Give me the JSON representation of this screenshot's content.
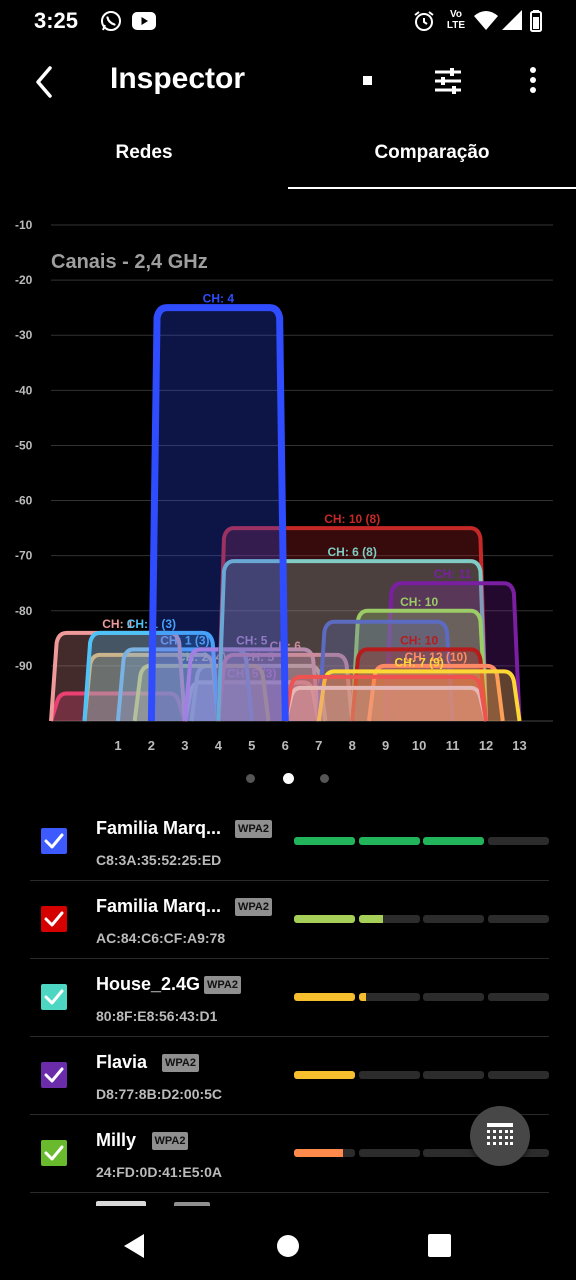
{
  "status_bar": {
    "time": "3:25",
    "icons": [
      "whatsapp-icon",
      "youtube-icon",
      "alarm-icon",
      "volte-icon",
      "wifi-icon",
      "signal-icon",
      "battery-icon"
    ],
    "volte_label": "Vo\nLTE"
  },
  "app_bar": {
    "title": "Inspector",
    "icons": [
      "back-arrow-icon",
      "stop-icon",
      "filter-sliders-icon",
      "more-vert-icon"
    ]
  },
  "tabs": [
    {
      "label": "Redes",
      "active": false
    },
    {
      "label": "Comparação",
      "active": true
    }
  ],
  "chart_data": {
    "type": "area",
    "title": "Canais - 2,4 GHz",
    "xlabel": "",
    "ylabel": "",
    "x_ticks": [
      1,
      2,
      3,
      4,
      5,
      6,
      7,
      8,
      9,
      10,
      11,
      12,
      13
    ],
    "y_ticks": [
      -10,
      -20,
      -30,
      -40,
      -50,
      -60,
      -70,
      -80,
      -90
    ],
    "ylim": [
      -100,
      -10
    ],
    "xlim": [
      -1,
      14
    ],
    "grid": true,
    "series": [
      {
        "label": "",
        "channel": 1,
        "width": 2,
        "signal": -95,
        "color": "#e91e63"
      },
      {
        "label": "CH: 5 (3)",
        "channel": 5,
        "width": 2,
        "signal": -93,
        "color": "#e040fb"
      },
      {
        "label": "",
        "channel": 5,
        "width": 2,
        "signal": -93,
        "color": "#f8bbd0"
      },
      {
        "label": "CH: 5",
        "channel": 5.2,
        "width": 2,
        "signal": -90,
        "color": "#bdbdbd"
      },
      {
        "label": "",
        "channel": 2,
        "width": 2,
        "signal": -88,
        "color": "#ffb74d"
      },
      {
        "label": "CH: 2 (4)",
        "channel": 3.5,
        "width": 2,
        "signal": -90,
        "color": "#fdd835"
      },
      {
        "label": "CH: 1 (3)",
        "channel": 3,
        "width": 2,
        "signal": -87,
        "color": "#64b5f6"
      },
      {
        "label": "CH: 1",
        "channel": 1,
        "width": 2,
        "signal": -84,
        "color": "#ef9a9a"
      },
      {
        "label": "CH: 1 (3)",
        "channel": 2,
        "width": 2,
        "signal": -84,
        "color": "#4fc3f7"
      },
      {
        "label": "CH: 5",
        "channel": 5,
        "width": 2,
        "signal": -87,
        "color": "#ce93d8"
      },
      {
        "label": "CH: 6",
        "channel": 6,
        "width": 2,
        "signal": -88,
        "color": "#f48fb1"
      },
      {
        "label": "CH: 10 (8)",
        "channel": 8,
        "width": 4,
        "signal": -65,
        "color": "#c62828"
      },
      {
        "label": "CH: 6 (8)",
        "channel": 8,
        "width": 4,
        "signal": -71,
        "color": "#80cbc4"
      },
      {
        "label": "CH: 11",
        "channel": 11,
        "width": 2,
        "signal": -75,
        "color": "#7b1fa2"
      },
      {
        "label": "CH: 10",
        "channel": 10,
        "width": 2,
        "signal": -80,
        "color": "#9ccc65"
      },
      {
        "label": "",
        "channel": 9,
        "width": 2,
        "signal": -82,
        "color": "#5c6bc0"
      },
      {
        "label": "CH: 10",
        "channel": 10,
        "width": 2,
        "signal": -87,
        "color": "#b71c1c"
      },
      {
        "label": "CH: 12 (10)",
        "channel": 10.5,
        "width": 2,
        "signal": -90,
        "color": "#ff8a65"
      },
      {
        "label": "CH: 7 (9)",
        "channel": 10,
        "width": 3,
        "signal": -91,
        "color": "#fdd835"
      },
      {
        "label": "",
        "channel": 9,
        "width": 3,
        "signal": -94,
        "color": "#e0e0e0"
      },
      {
        "label": "",
        "channel": 9,
        "width": 3,
        "signal": -92,
        "color": "#ef5350"
      },
      {
        "label": "CH: 4",
        "channel": 4,
        "width": 2,
        "signal": -25,
        "color": "#2f4dff"
      }
    ]
  },
  "pager": {
    "count": 3,
    "active": 1
  },
  "networks": [
    {
      "name": "Familia Marq...",
      "security": "WPA2",
      "mac": "C8:3A:35:52:25:ED",
      "color": "#3d5afe",
      "strength": 0.75,
      "bar_color": "#21b45a"
    },
    {
      "name": "Familia Marq...",
      "security": "WPA2",
      "mac": "AC:84:C6:CF:A9:78",
      "color": "#d50000",
      "strength": 0.35,
      "bar_color": "#a6cf5a"
    },
    {
      "name": "House_2.4G",
      "security": "WPA2",
      "mac": "80:8F:E8:56:43:D1",
      "color": "#4dd7c2",
      "strength": 0.28,
      "bar_color": "#f7bf2d"
    },
    {
      "name": "Flavia",
      "security": "WPA2",
      "mac": "D8:77:8B:D2:00:5C",
      "color": "#6a2ca8",
      "strength": 0.25,
      "bar_color": "#f7bf2d"
    },
    {
      "name": "Milly",
      "security": "WPA2",
      "mac": "24:FD:0D:41:E5:0A",
      "color": "#6aba2e",
      "strength": 0.2,
      "bar_color": "#ff8a4c"
    }
  ],
  "fab": {
    "icon": "grid-table-icon"
  },
  "nav_bar": {
    "icons": [
      "nav-back-icon",
      "nav-home-icon",
      "nav-recents-icon"
    ]
  }
}
